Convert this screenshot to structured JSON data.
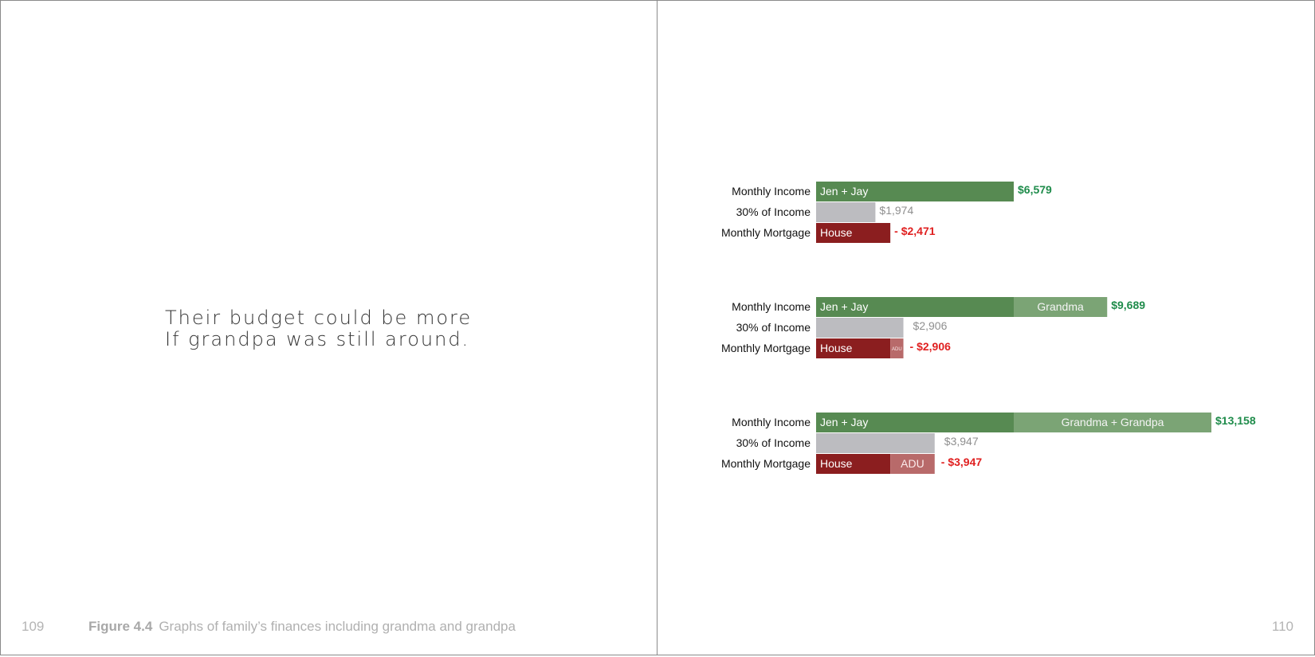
{
  "left_page": {
    "quote_lines": [
      "Their budget could be more",
      "If grandpa was still around."
    ],
    "page_number": "109",
    "caption_label": "Figure 4.4",
    "caption_text": "Graphs of family’s finances including grandma and grandpa"
  },
  "right_page": {
    "page_number": "110"
  },
  "colors": {
    "income_main": "#578a52",
    "income_extra": "#7ba475",
    "thirty_percent": "#bcbcc0",
    "mortgage_house": "#8b1e1f",
    "mortgage_adu": "#b86a6a",
    "income_value": "#1f8c4b",
    "thirty_value": "#8f8f8f",
    "mortgage_value": "#e02020"
  },
  "chart_data": [
    {
      "type": "bar",
      "categories": [
        "Monthly Income",
        "30% of Income",
        "Monthly Mortgage"
      ],
      "income": {
        "segments": [
          {
            "label": "Jen + Jay",
            "value": 6579
          }
        ],
        "total_label": "$6,579"
      },
      "thirty_percent": {
        "value": 1974,
        "label": "$1,974"
      },
      "mortgage": {
        "segments": [
          {
            "label": "House",
            "value": 2471
          }
        ],
        "total_label": "- $2,471"
      }
    },
    {
      "type": "bar",
      "categories": [
        "Monthly Income",
        "30% of Income",
        "Monthly Mortgage"
      ],
      "income": {
        "segments": [
          {
            "label": "Jen + Jay",
            "value": 6579
          },
          {
            "label": "Grandma",
            "value": 3110
          }
        ],
        "total_label": "$9,689"
      },
      "thirty_percent": {
        "value": 2906,
        "label": "$2,906"
      },
      "mortgage": {
        "segments": [
          {
            "label": "House",
            "value": 2471
          },
          {
            "label": "ADU",
            "value": 435
          }
        ],
        "total_label": "- $2,906"
      }
    },
    {
      "type": "bar",
      "categories": [
        "Monthly Income",
        "30% of Income",
        "Monthly Mortgage"
      ],
      "income": {
        "segments": [
          {
            "label": "Jen + Jay",
            "value": 6579
          },
          {
            "label": "Grandma + Grandpa",
            "value": 6579
          }
        ],
        "total_label": "$13,158"
      },
      "thirty_percent": {
        "value": 3947,
        "label": "$3,947"
      },
      "mortgage": {
        "segments": [
          {
            "label": "House",
            "value": 2471
          },
          {
            "label": "ADU",
            "value": 1476
          }
        ],
        "total_label": "- $3,947"
      }
    }
  ]
}
